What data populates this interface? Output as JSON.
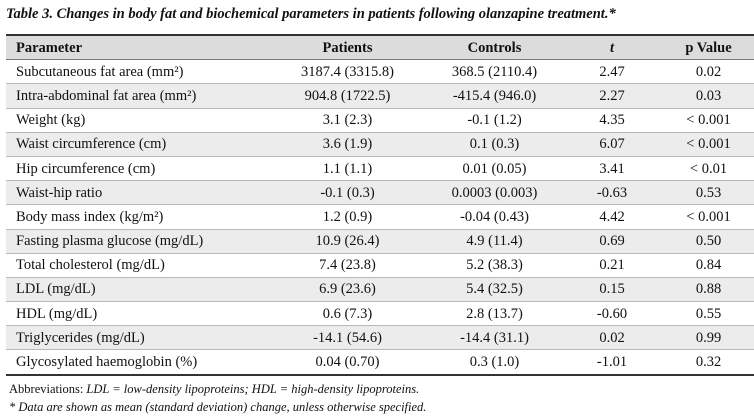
{
  "caption": "Table 3. Changes in body fat and biochemical parameters in patients following olanzapine treatment.*",
  "table": {
    "headers": {
      "parameter": "Parameter",
      "patients": "Patients",
      "controls": "Controls",
      "t": "t",
      "p": "p Value"
    },
    "rows": [
      {
        "parameter": "Subcutaneous fat area (mm²)",
        "patients": "3187.4 (3315.8)",
        "controls": "368.5 (2110.4)",
        "t": "2.47",
        "p": "0.02"
      },
      {
        "parameter": "Intra-abdominal fat area (mm²)",
        "patients": "904.8 (1722.5)",
        "controls": "-415.4 (946.0)",
        "t": "2.27",
        "p": "0.03"
      },
      {
        "parameter": "Weight (kg)",
        "patients": "3.1 (2.3)",
        "controls": "-0.1 (1.2)",
        "t": "4.35",
        "p": "< 0.001"
      },
      {
        "parameter": "Waist circumference (cm)",
        "patients": "3.6 (1.9)",
        "controls": "0.1 (0.3)",
        "t": "6.07",
        "p": "< 0.001"
      },
      {
        "parameter": "Hip circumference (cm)",
        "patients": "1.1 (1.1)",
        "controls": "0.01 (0.05)",
        "t": "3.41",
        "p": "< 0.01"
      },
      {
        "parameter": "Waist-hip ratio",
        "patients": "-0.1 (0.3)",
        "controls": "0.0003 (0.003)",
        "t": "-0.63",
        "p": "0.53"
      },
      {
        "parameter": "Body mass index (kg/m²)",
        "patients": "1.2 (0.9)",
        "controls": "-0.04 (0.43)",
        "t": "4.42",
        "p": "< 0.001"
      },
      {
        "parameter": "Fasting plasma glucose (mg/dL)",
        "patients": "10.9 (26.4)",
        "controls": "4.9 (11.4)",
        "t": "0.69",
        "p": "0.50"
      },
      {
        "parameter": "Total cholesterol (mg/dL)",
        "patients": "7.4 (23.8)",
        "controls": "5.2 (38.3)",
        "t": "0.21",
        "p": "0.84"
      },
      {
        "parameter": "LDL (mg/dL)",
        "patients": "6.9 (23.6)",
        "controls": "5.4 (32.5)",
        "t": "0.15",
        "p": "0.88"
      },
      {
        "parameter": "HDL (mg/dL)",
        "patients": "0.6 (7.3)",
        "controls": "2.8 (13.7)",
        "t": "-0.60",
        "p": "0.55"
      },
      {
        "parameter": "Triglycerides (mg/dL)",
        "patients": "-14.1 (54.6)",
        "controls": "-14.4 (31.1)",
        "t": "0.02",
        "p": "0.99"
      },
      {
        "parameter": "Glycosylated haemoglobin (%)",
        "patients": "0.04 (0.70)",
        "controls": "0.3 (1.0)",
        "t": "-1.01",
        "p": "0.32"
      }
    ]
  },
  "footnotes": {
    "abbr_prefix": "Abbreviations: ",
    "abbr_text": "LDL = low-density lipoproteins; HDL = high-density lipoproteins.",
    "star_text": "* Data are shown as mean (standard deviation) change, unless otherwise specified."
  }
}
